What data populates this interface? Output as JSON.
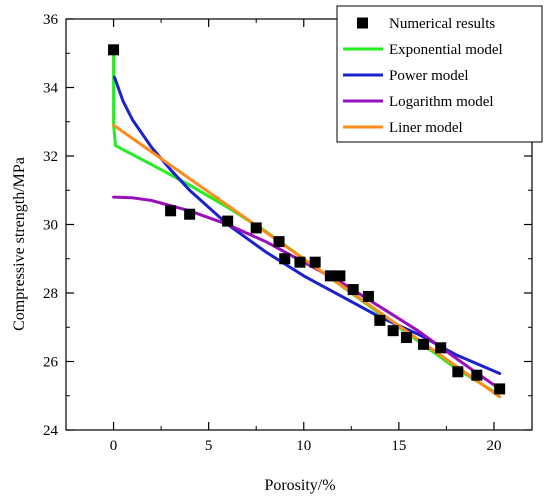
{
  "chart_data": {
    "type": "scatter",
    "xlabel": "Porosity/%",
    "ylabel": "Compressive strength/MPa",
    "xlim": [
      -2.5,
      22
    ],
    "ylim": [
      24,
      36
    ],
    "xticks": [
      0,
      5,
      10,
      15,
      20
    ],
    "yticks": [
      24,
      26,
      28,
      30,
      32,
      34,
      36
    ],
    "legend_position": "top-right",
    "grid": false,
    "points": {
      "name": "Numerical results",
      "color": "#000000",
      "x": [
        0,
        3.0,
        4.0,
        6.0,
        7.5,
        8.7,
        9.0,
        9.8,
        10.6,
        11.4,
        11.9,
        12.6,
        13.4,
        14.0,
        14.7,
        15.4,
        16.3,
        17.2,
        18.1,
        19.1,
        20.3
      ],
      "y": [
        35.1,
        30.4,
        30.3,
        30.1,
        29.9,
        29.5,
        29.0,
        28.9,
        28.9,
        28.5,
        28.5,
        28.1,
        27.9,
        27.2,
        26.9,
        26.7,
        26.5,
        26.4,
        25.7,
        25.6,
        25.2
      ]
    },
    "series": [
      {
        "name": "Exponential model",
        "color": "#22ee22",
        "x": [
          0,
          0,
          0.1,
          2,
          4,
          6,
          8,
          10,
          12,
          14,
          16,
          18,
          20.2
        ],
        "y": [
          35.1,
          32.9,
          32.3,
          31.75,
          31.15,
          30.5,
          29.8,
          29.0,
          28.2,
          27.4,
          26.6,
          25.8,
          25.05
        ]
      },
      {
        "name": "Power model",
        "color": "#1a22cc",
        "x": [
          0.05,
          0.5,
          1,
          2,
          3,
          4,
          5,
          6,
          8,
          10,
          12,
          14,
          16,
          18,
          20.3
        ],
        "y": [
          34.3,
          33.6,
          33.05,
          32.25,
          31.6,
          31.0,
          30.5,
          30.0,
          29.2,
          28.5,
          27.9,
          27.3,
          26.8,
          26.2,
          25.65
        ]
      },
      {
        "name": "Logarithm model",
        "color": "#9910bb",
        "x": [
          0,
          1,
          2,
          3,
          4,
          5,
          6,
          7,
          8,
          9,
          10,
          11,
          12,
          13,
          14,
          15,
          16,
          17,
          18,
          19,
          20.3
        ],
        "y": [
          30.8,
          30.78,
          30.7,
          30.55,
          30.4,
          30.2,
          30.0,
          29.75,
          29.5,
          29.2,
          28.9,
          28.6,
          28.3,
          27.95,
          27.6,
          27.25,
          26.9,
          26.5,
          26.1,
          25.7,
          25.2
        ]
      },
      {
        "name": "Liner model",
        "color": "#ff8c1a",
        "x": [
          0,
          20.3
        ],
        "y": [
          32.9,
          24.97
        ]
      }
    ]
  }
}
